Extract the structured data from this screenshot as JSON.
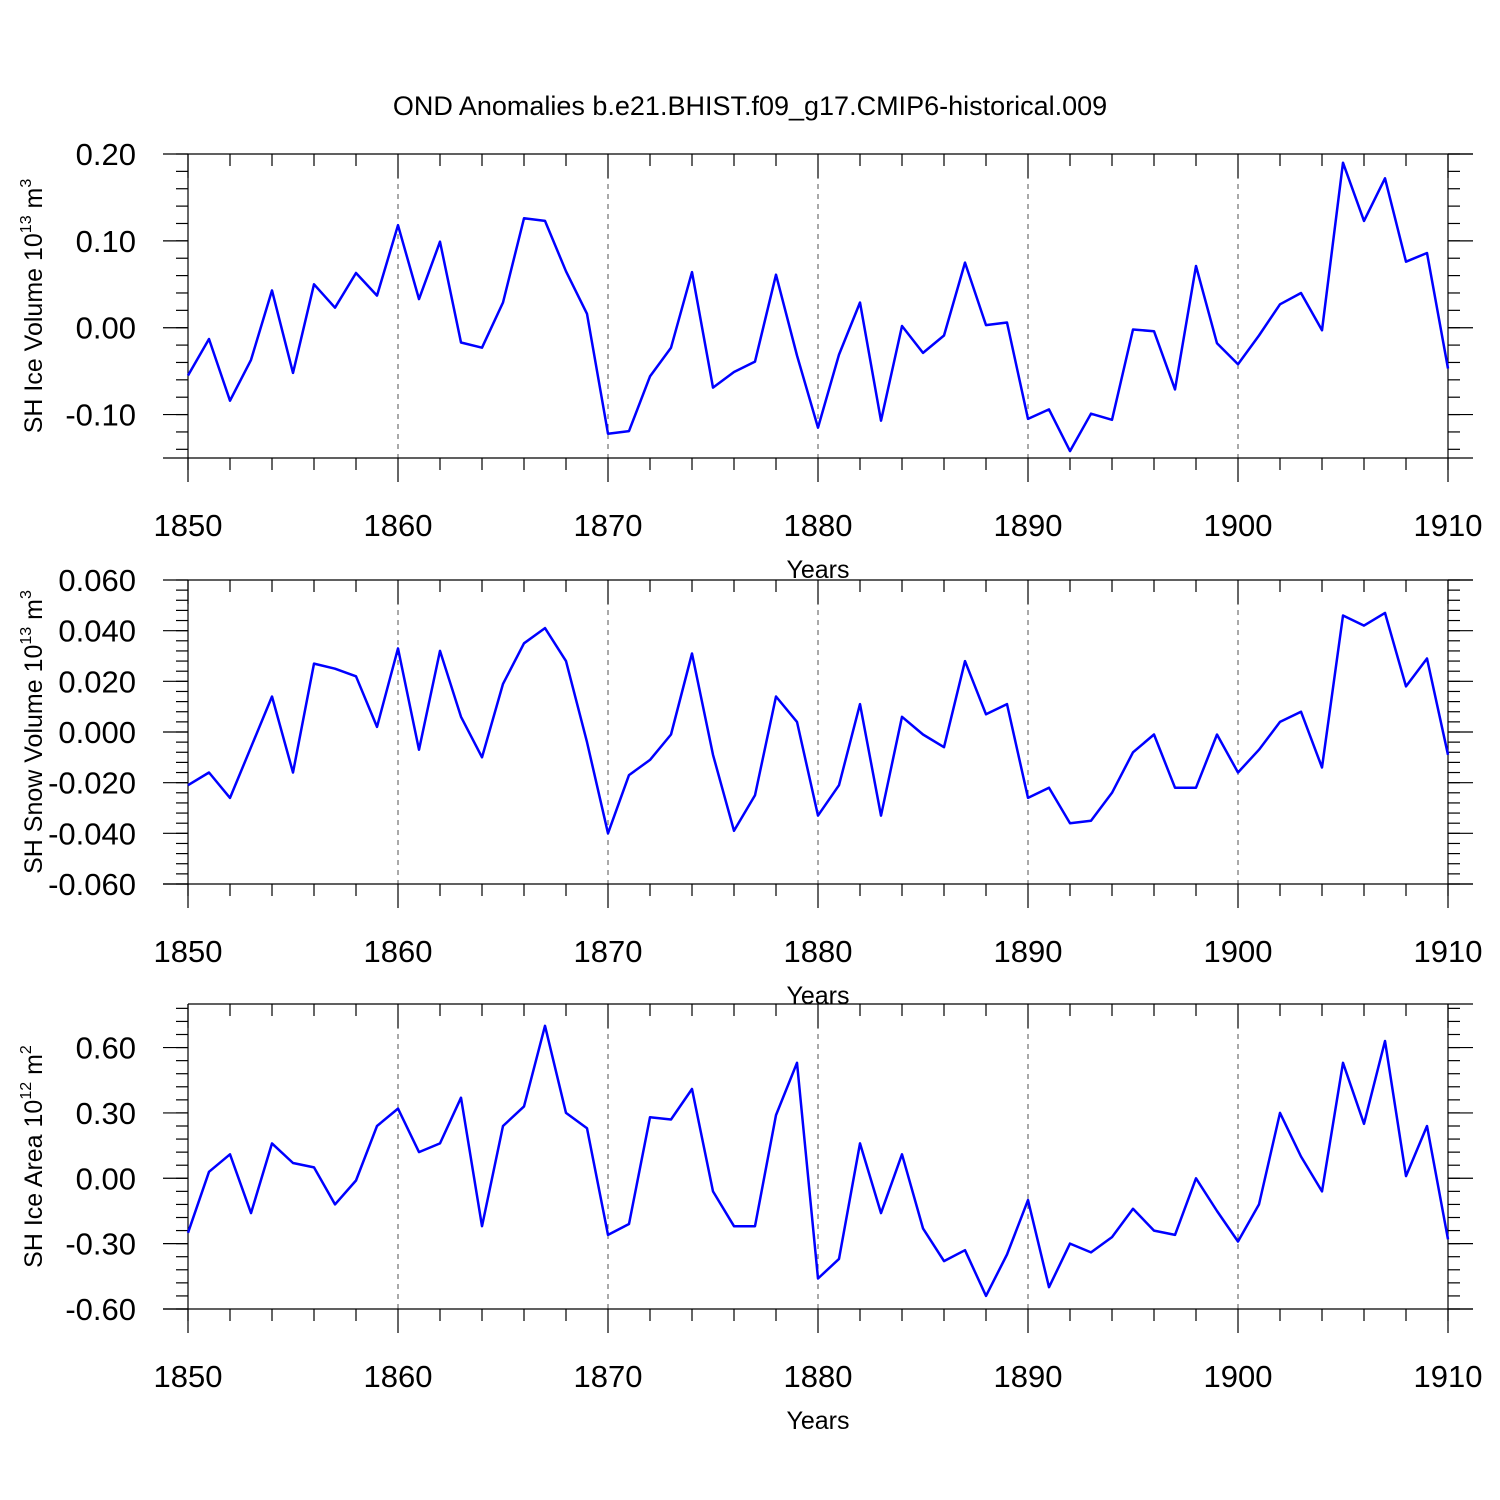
{
  "title": "OND Anomalies b.e21.BHIST.f09_g17.CMIP6-historical.009",
  "colors": {
    "series": "#0000ff",
    "axis": "#000000",
    "grid": "#555555"
  },
  "chart_data": [
    {
      "type": "line",
      "ylabel_main": "SH Ice Volume 10",
      "ylabel_exp": "13",
      "ylabel_unit": " m",
      "ylabel_unit_exp": "3",
      "xlabel": "Years",
      "xlim": [
        1850,
        1910
      ],
      "ylim": [
        -0.15,
        0.2
      ],
      "yticks": [
        0.2,
        0.1,
        0.0,
        -0.1
      ],
      "ytick_labels": [
        "0.20",
        "0.10",
        "0.00",
        "-0.10"
      ],
      "yminor_step": 0.02,
      "xticks": [
        1850,
        1860,
        1870,
        1880,
        1890,
        1900,
        1910
      ],
      "xtick_labels": [
        "1850",
        "1860",
        "1870",
        "1880",
        "1890",
        "1900",
        "1910"
      ],
      "x_start": 1850,
      "values": [
        -0.055,
        -0.013,
        -0.084,
        -0.037,
        0.043,
        -0.052,
        0.05,
        0.023,
        0.063,
        0.037,
        0.118,
        0.033,
        0.099,
        -0.017,
        -0.023,
        0.029,
        0.126,
        0.123,
        0.065,
        0.016,
        -0.122,
        -0.119,
        -0.056,
        -0.023,
        0.064,
        -0.069,
        -0.051,
        -0.039,
        0.061,
        -0.032,
        -0.115,
        -0.031,
        0.029,
        -0.107,
        0.002,
        -0.029,
        -0.009,
        0.075,
        0.003,
        0.006,
        -0.105,
        -0.094,
        -0.142,
        -0.099,
        -0.106,
        -0.002,
        -0.004,
        -0.071,
        0.071,
        -0.018,
        -0.042,
        -0.009,
        0.027,
        0.04,
        -0.003,
        0.19,
        0.123,
        0.172,
        0.076,
        0.086,
        -0.047
      ]
    },
    {
      "type": "line",
      "ylabel_main": "SH Snow Volume 10",
      "ylabel_exp": "13",
      "ylabel_unit": " m",
      "ylabel_unit_exp": "3",
      "xlabel": "Years",
      "xlim": [
        1850,
        1910
      ],
      "ylim": [
        -0.06,
        0.06
      ],
      "yticks": [
        0.06,
        0.04,
        0.02,
        0.0,
        -0.02,
        -0.04,
        -0.06
      ],
      "ytick_labels": [
        "0.060",
        "0.040",
        "0.020",
        "0.000",
        "-0.020",
        "-0.040",
        "-0.060"
      ],
      "yminor_step": 0.004,
      "xticks": [
        1850,
        1860,
        1870,
        1880,
        1890,
        1900,
        1910
      ],
      "xtick_labels": [
        "1850",
        "1860",
        "1870",
        "1880",
        "1890",
        "1900",
        "1910"
      ],
      "x_start": 1850,
      "values": [
        -0.021,
        -0.016,
        -0.026,
        -0.006,
        0.014,
        -0.016,
        0.027,
        0.025,
        0.022,
        0.002,
        0.033,
        -0.007,
        0.032,
        0.006,
        -0.01,
        0.019,
        0.035,
        0.041,
        0.028,
        -0.004,
        -0.04,
        -0.017,
        -0.011,
        -0.001,
        0.031,
        -0.009,
        -0.039,
        -0.025,
        0.014,
        0.004,
        -0.033,
        -0.021,
        0.011,
        -0.033,
        0.006,
        -0.001,
        -0.006,
        0.028,
        0.007,
        0.011,
        -0.026,
        -0.022,
        -0.036,
        -0.035,
        -0.024,
        -0.008,
        -0.001,
        -0.022,
        -0.022,
        -0.001,
        -0.016,
        -0.007,
        0.004,
        0.008,
        -0.014,
        0.046,
        0.042,
        0.047,
        0.018,
        0.029,
        -0.009
      ]
    },
    {
      "type": "line",
      "ylabel_main": "SH Ice Area 10",
      "ylabel_exp": "12",
      "ylabel_unit": " m",
      "ylabel_unit_exp": "2",
      "xlabel": "Years",
      "xlim": [
        1850,
        1910
      ],
      "ylim": [
        -0.6,
        0.8
      ],
      "yticks": [
        0.6,
        0.3,
        0.0,
        -0.3,
        -0.6
      ],
      "ytick_labels": [
        "0.60",
        "0.30",
        "0.00",
        "-0.30",
        "-0.60"
      ],
      "yminor_step": 0.06,
      "xticks": [
        1850,
        1860,
        1870,
        1880,
        1890,
        1900,
        1910
      ],
      "xtick_labels": [
        "1850",
        "1860",
        "1870",
        "1880",
        "1890",
        "1900",
        "1910"
      ],
      "x_start": 1850,
      "values": [
        -0.25,
        0.03,
        0.11,
        -0.16,
        0.16,
        0.07,
        0.05,
        -0.12,
        -0.01,
        0.24,
        0.32,
        0.12,
        0.16,
        0.37,
        -0.22,
        0.24,
        0.33,
        0.7,
        0.3,
        0.23,
        -0.26,
        -0.21,
        0.28,
        0.27,
        0.41,
        -0.06,
        -0.22,
        -0.22,
        0.29,
        0.53,
        -0.46,
        -0.37,
        0.16,
        -0.16,
        0.11,
        -0.23,
        -0.38,
        -0.33,
        -0.54,
        -0.35,
        -0.1,
        -0.5,
        -0.3,
        -0.34,
        -0.27,
        -0.14,
        -0.24,
        -0.26,
        0.0,
        -0.15,
        -0.29,
        -0.12,
        0.3,
        0.1,
        -0.06,
        0.53,
        0.25,
        0.63,
        0.01,
        0.24,
        -0.28
      ]
    }
  ]
}
